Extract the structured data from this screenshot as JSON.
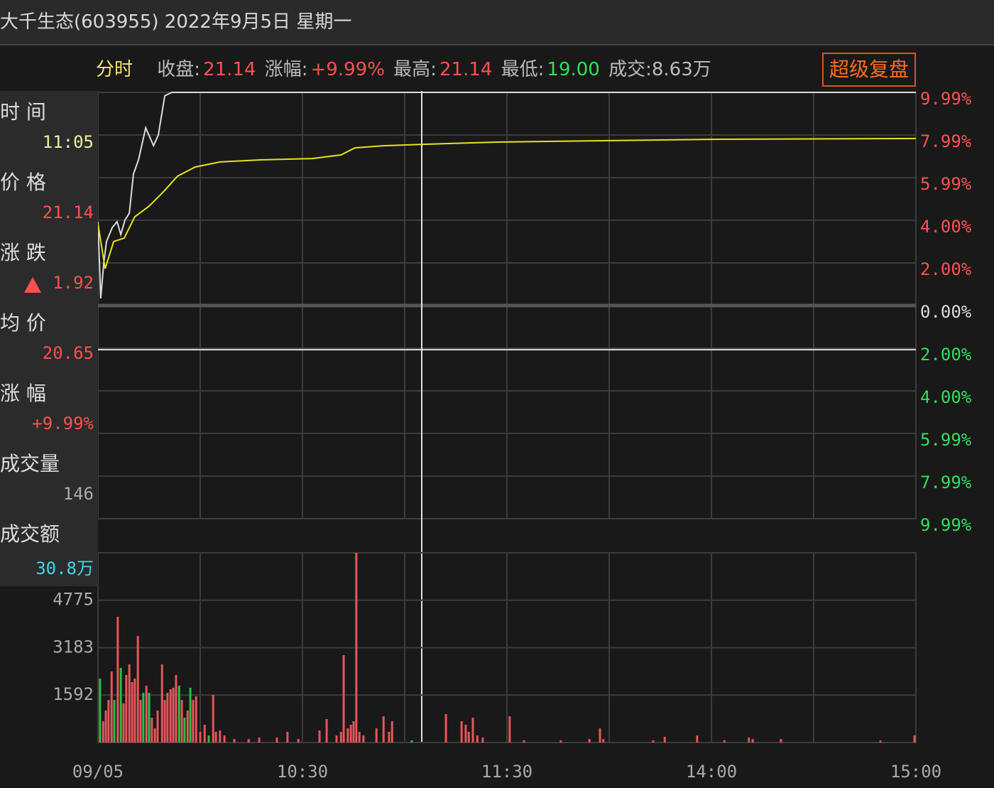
{
  "header": {
    "title": "大千生态(603955) 2022年9月5日 星期一"
  },
  "info_bar": {
    "mode": "分时",
    "items": [
      {
        "label": "收盘:",
        "value": "21.14"
      },
      {
        "label": "涨幅:",
        "value": "+9.99%"
      },
      {
        "label": "最高:",
        "value": "21.14"
      },
      {
        "label": "最低:",
        "value": "19.00"
      },
      {
        "label": "成交:8.63万"
      }
    ],
    "button": "超级复盘"
  },
  "sidebar": [
    {
      "label": "时 间",
      "value": "11:05"
    },
    {
      "label": "价 格",
      "value": "21.14"
    },
    {
      "label": "涨 跌",
      "value": "1.92"
    },
    {
      "label": "均 价",
      "value": "20.65"
    },
    {
      "label": "涨 幅",
      "value": "+9.99%"
    },
    {
      "label": "成交量",
      "value": "146"
    },
    {
      "label": "成交额",
      "value": "30.8万"
    }
  ],
  "chart_data": [
    {
      "type": "line",
      "xlim": [
        0,
        240
      ],
      "ylim": [
        -9.99,
        9.99
      ],
      "xgrid": [
        0,
        30,
        60,
        90,
        120,
        150,
        180,
        210,
        240
      ],
      "yticks": [
        {
          "value": 9.99,
          "label": "9.99%"
        },
        {
          "value": 7.99,
          "label": "7.99%"
        },
        {
          "value": 5.99,
          "label": "5.99%"
        },
        {
          "value": 4.0,
          "label": "4.00%"
        },
        {
          "value": 2.0,
          "label": "2.00%"
        },
        {
          "value": 0,
          "label": "0.00%"
        },
        {
          "value": -2.0,
          "label": "2.00%"
        },
        {
          "value": -4.0,
          "label": "4.00%"
        },
        {
          "value": -5.99,
          "label": "5.99%"
        },
        {
          "value": -7.99,
          "label": "7.99%"
        },
        {
          "value": -9.99,
          "label": "9.99%"
        }
      ],
      "crosshair": {
        "x": 95,
        "y": -2.07
      },
      "series": [
        {
          "color": "#dcdcdc",
          "x": [
            0,
            0.8,
            1.7,
            2.5,
            4.2,
            5.6,
            6.7,
            7.9,
            9.2,
            10.4,
            11.9,
            14,
            16.3,
            17.7,
            19.6,
            21.7,
            240
          ],
          "values": [
            3.93,
            0.33,
            2.0,
            3.0,
            3.66,
            3.93,
            3.33,
            4.0,
            4.33,
            6.16,
            6.83,
            8.33,
            7.49,
            7.99,
            9.83,
            9.99,
            9.99
          ]
        },
        {
          "color": "#e6e21f",
          "x": [
            0,
            2.1,
            4.6,
            7.7,
            10.8,
            15,
            19.2,
            23.3,
            28.5,
            35.8,
            48.3,
            62.9,
            71.3,
            75.4,
            83.75,
            96.25,
            117.1,
            150.4,
            179.6,
            240
          ],
          "values": [
            3.83,
            1.73,
            3.0,
            3.16,
            4.16,
            4.66,
            5.33,
            6.06,
            6.49,
            6.73,
            6.83,
            6.89,
            7.06,
            7.39,
            7.49,
            7.56,
            7.66,
            7.73,
            7.79,
            7.83
          ]
        }
      ]
    },
    {
      "type": "bar",
      "xlim": [
        0,
        240
      ],
      "ylim": [
        0,
        6366
      ],
      "xgrid": [
        0,
        30,
        60,
        90,
        120,
        150,
        180,
        210,
        240
      ],
      "yticks": [
        1592,
        3183,
        4775
      ],
      "xticks": [
        {
          "value": 0,
          "label": "09/05"
        },
        {
          "value": 60,
          "label": "10:30"
        },
        {
          "value": 120,
          "label": "11:30"
        },
        {
          "value": 180,
          "label": "14:00"
        },
        {
          "value": 240,
          "label": "15:00"
        }
      ],
      "series": [
        {
          "color": "#e8555a",
          "x": [
            1.5,
            2.3,
            3.1,
            4,
            5.8,
            7.5,
            8.3,
            9.2,
            10,
            10.8,
            11.7,
            12.5,
            14.2,
            15.8,
            16.7,
            17.5,
            18.8,
            19.6,
            20.4,
            21.3,
            22.1,
            22.9,
            24.6,
            26.3,
            27.9,
            28.8,
            30,
            31.3,
            33.8,
            34.6,
            35.8,
            37.1,
            40,
            44.2,
            47.3,
            52.5,
            55.6,
            58.8,
            65,
            67.1,
            70,
            71.3,
            72.1,
            73.3,
            74.2,
            75,
            75.8,
            76.7,
            77.9,
            81.7,
            83.8,
            85.4,
            86.3,
            102.1,
            106.7,
            107.9,
            108.8,
            110,
            111.3,
            112.9,
            120.8,
            125,
            135.8,
            144.2,
            147.3,
            148.3,
            162.9,
            166.3,
            175.8,
            183.8,
            191,
            192.1,
            200.4,
            229.6,
            239.6
          ],
          "values": [
            715,
            1073,
            1430,
            2384,
            4220,
            1311,
            2265,
            2622,
            2026,
            2146,
            3576,
            1430,
            1907,
            834,
            477,
            1073,
            2622,
            1430,
            1669,
            1788,
            1836,
            2265,
            1430,
            1073,
            1430,
            1550,
            358,
            596,
            1597,
            358,
            405,
            238,
            119,
            119,
            167,
            167,
            358,
            119,
            405,
            787,
            238,
            358,
            2932,
            477,
            596,
            715,
            6365,
            358,
            238,
            477,
            882,
            358,
            715,
            954,
            715,
            596,
            358,
            834,
            238,
            167,
            882,
            72,
            72,
            119,
            477,
            119,
            72,
            191,
            238,
            72,
            167,
            119,
            119,
            72,
            238
          ]
        },
        {
          "color": "#2bbf4a",
          "x": [
            0.6,
            4.8,
            6.7,
            13.3,
            15,
            23.8,
            25.4,
            27.1,
            32.5,
            92.1
          ],
          "values": [
            2146,
            1430,
            2503,
            1669,
            1669,
            1907,
            834,
            1836,
            238,
            72
          ]
        }
      ]
    }
  ]
}
